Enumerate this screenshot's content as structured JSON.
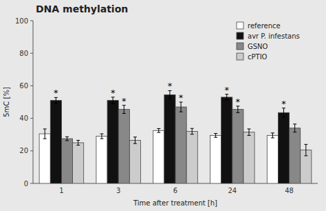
{
  "chart_data": {
    "type": "bar",
    "title": "DNA methylation",
    "x_label": "Time after treatment [h]",
    "y_label": "5mC [%]",
    "categories": [
      "1",
      "3",
      "6",
      "24",
      "48"
    ],
    "series": [
      {
        "name": "reference",
        "color": "#ffffff",
        "values": [
          30.5,
          29.0,
          32.5,
          29.5,
          29.5
        ],
        "errors": [
          3.0,
          1.5,
          1.2,
          1.2,
          1.5
        ]
      },
      {
        "name": "avr P. infestans",
        "color": "#111111",
        "values": [
          51.0,
          51.0,
          54.5,
          53.0,
          43.5
        ],
        "errors": [
          1.8,
          2.0,
          2.5,
          1.8,
          2.8
        ]
      },
      {
        "name": "GSNO",
        "color": "#888888",
        "values": [
          27.5,
          45.5,
          47.0,
          45.5,
          34.0
        ],
        "errors": [
          1.2,
          2.5,
          3.0,
          2.0,
          2.5
        ]
      },
      {
        "name": "cPTIO",
        "color": "#cccccc",
        "values": [
          25.0,
          26.5,
          32.0,
          31.5,
          20.5
        ],
        "errors": [
          1.5,
          2.0,
          1.8,
          2.0,
          3.5
        ]
      }
    ],
    "annotations": [
      {
        "text": "*",
        "series": 1,
        "category": 0
      },
      {
        "text": "*",
        "series": 1,
        "category": 1
      },
      {
        "text": "*",
        "series": 1,
        "category": 2
      },
      {
        "text": "*",
        "series": 1,
        "category": 3
      },
      {
        "text": "*",
        "series": 1,
        "category": 4
      },
      {
        "text": "*",
        "series": 2,
        "category": 1
      },
      {
        "text": "*",
        "series": 2,
        "category": 2
      },
      {
        "text": "*",
        "series": 2,
        "category": 3
      }
    ],
    "ylim": [
      0,
      100
    ],
    "yticks": [
      0,
      20,
      40,
      60,
      80,
      100
    ],
    "grid": false,
    "legend": "upper right"
  }
}
